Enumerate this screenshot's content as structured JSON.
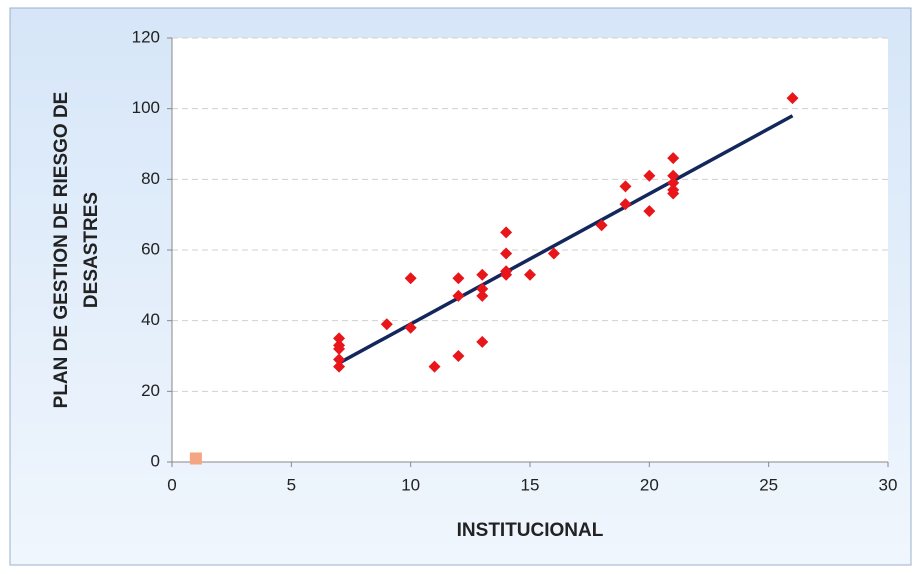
{
  "chart_data": {
    "type": "scatter",
    "xlabel": "INSTITUCIONAL",
    "ylabel": [
      "PLAN DE GESTION DE RIESGO DE",
      "DESASTRES"
    ],
    "xlim": [
      0,
      30
    ],
    "xticks": [
      0,
      5,
      10,
      15,
      20,
      25,
      30
    ],
    "ylim": [
      0,
      120
    ],
    "yticks": [
      0,
      20,
      40,
      60,
      80,
      100,
      120
    ],
    "grid": true,
    "series": [
      {
        "color": "#e8161a",
        "marker": "diamond",
        "x": [
          7,
          7,
          7,
          7,
          7,
          9,
          10,
          10,
          11,
          12,
          12,
          12,
          13,
          13,
          13,
          13,
          14,
          14,
          14,
          14,
          15,
          16,
          18,
          19,
          19,
          20,
          20,
          21,
          21,
          21,
          21,
          21,
          26
        ],
        "values": [
          35,
          33,
          32,
          29,
          27,
          39,
          52,
          38,
          27,
          52,
          47,
          30,
          53,
          49,
          47,
          34,
          65,
          59,
          54,
          53,
          53,
          59,
          67,
          78,
          73,
          81,
          71,
          86,
          81,
          79,
          77,
          76,
          103
        ]
      },
      {
        "color": "#f4a582",
        "marker": "square",
        "x": [
          1
        ],
        "values": [
          1
        ]
      }
    ],
    "trendline": {
      "color": "#14275c",
      "x": [
        7,
        26
      ],
      "values": [
        28,
        98
      ]
    }
  }
}
